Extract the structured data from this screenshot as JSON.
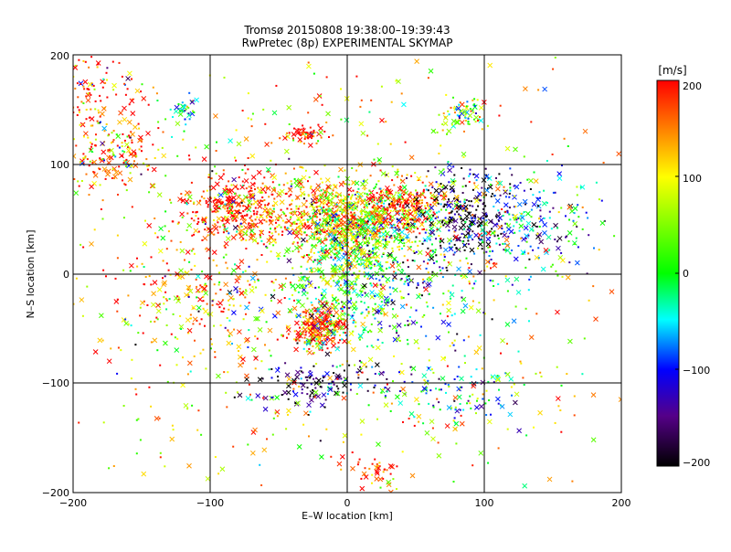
{
  "header": {
    "title_line1": "Tromsø 20150808 19:38:00–19:39:43",
    "title_line2": "RwPretec (8p) EXPERIMENTAL SKYMAP"
  },
  "chart_data": {
    "type": "scatter",
    "title": "Tromsø 20150808 19:38:00–19:39:43",
    "subtitle": "RwPretec (8p) EXPERIMENTAL SKYMAP",
    "xlabel": "E–W location [km]",
    "ylabel": "N–S location [km]",
    "xlim": [
      -200,
      200
    ],
    "ylim": [
      -200,
      200
    ],
    "x_ticks": [
      -200,
      -100,
      0,
      100,
      200
    ],
    "y_ticks": [
      -200,
      -100,
      0,
      100,
      200
    ],
    "x_tick_labels": [
      "−200",
      "−100",
      "0",
      "100",
      "200"
    ],
    "y_tick_labels": [
      "−200",
      "−100",
      "0",
      "100",
      "200"
    ],
    "grid": true,
    "colorbar": {
      "label": "[m/s]",
      "range": [
        -200,
        200
      ],
      "ticks": [
        200,
        100,
        0,
        -100,
        -200
      ],
      "tick_labels": [
        "200",
        "100",
        "0",
        "−100",
        "−200"
      ],
      "stops": [
        "#ff0000",
        "#ffff00",
        "#00ff00",
        "#00ffff",
        "#0000ff",
        "#550088",
        "#000000"
      ]
    },
    "series_description": "≈ several thousand scatter points (crosses and dots) colored by Doppler velocity in m/s",
    "clusters": [
      {
        "x": -170,
        "y": 110,
        "sx": 20,
        "sy": 18,
        "n": 180,
        "vel": 160
      },
      {
        "x": -180,
        "y": 170,
        "sx": 18,
        "sy": 20,
        "n": 120,
        "vel": 190
      },
      {
        "x": -120,
        "y": 148,
        "sx": 6,
        "sy": 6,
        "n": 35,
        "vel": -10
      },
      {
        "x": -80,
        "y": 60,
        "sx": 22,
        "sy": 16,
        "n": 380,
        "vel": 190
      },
      {
        "x": -30,
        "y": 128,
        "sx": 8,
        "sy": 4,
        "n": 60,
        "vel": 200
      },
      {
        "x": -15,
        "y": 50,
        "sx": 22,
        "sy": 18,
        "n": 420,
        "vel": 140
      },
      {
        "x": 15,
        "y": 45,
        "sx": 22,
        "sy": 20,
        "n": 380,
        "vel": 60
      },
      {
        "x": 40,
        "y": 60,
        "sx": 18,
        "sy": 12,
        "n": 260,
        "vel": 180
      },
      {
        "x": 85,
        "y": 55,
        "sx": 20,
        "sy": 20,
        "n": 260,
        "vel": -180
      },
      {
        "x": 130,
        "y": 45,
        "sx": 25,
        "sy": 22,
        "n": 200,
        "vel": -60
      },
      {
        "x": 85,
        "y": 145,
        "sx": 10,
        "sy": 7,
        "n": 70,
        "vel": 40
      },
      {
        "x": -20,
        "y": -50,
        "sx": 10,
        "sy": 10,
        "n": 230,
        "vel": 195
      },
      {
        "x": 0,
        "y": 0,
        "sx": 20,
        "sy": 30,
        "n": 420,
        "vel": 10
      },
      {
        "x": 50,
        "y": -5,
        "sx": 30,
        "sy": 30,
        "n": 220,
        "vel": -70
      },
      {
        "x": -110,
        "y": -20,
        "sx": 30,
        "sy": 35,
        "n": 220,
        "vel": 140
      },
      {
        "x": -20,
        "y": -100,
        "sx": 25,
        "sy": 10,
        "n": 140,
        "vel": -170
      },
      {
        "x": 80,
        "y": -110,
        "sx": 25,
        "sy": 15,
        "n": 110,
        "vel": -40
      },
      {
        "x": 20,
        "y": -180,
        "sx": 10,
        "sy": 8,
        "n": 40,
        "vel": 180
      },
      {
        "x": 0,
        "y": 0,
        "sx": 110,
        "sy": 110,
        "n": 900,
        "vel": 100
      }
    ]
  }
}
